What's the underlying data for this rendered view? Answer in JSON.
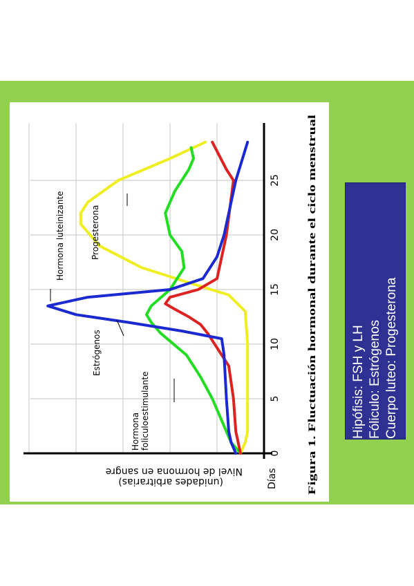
{
  "chart_data": {
    "type": "line",
    "title": "Figura 1. Fluctuación hormonal durante el ciclo menstrual",
    "ylabel": "Nivel de hormona en sangre",
    "ylabel_sub": "(unidades arbitrarias)",
    "xlabel": "Días",
    "xlim": [
      0,
      28
    ],
    "ylim": [
      0,
      100
    ],
    "xticks": [
      0,
      5,
      10,
      15,
      20,
      25
    ],
    "grid": true,
    "orientation": "rotated 90° clockwise",
    "series": [
      {
        "name": "Hormona luteinizante",
        "color": "#1a2ad0",
        "x": [
          0,
          1,
          2,
          5,
          9,
          10.5,
          11.2,
          12,
          12.7,
          13.5,
          14.3,
          15,
          16,
          18,
          20,
          25,
          28.5
        ],
        "y": [
          12,
          14,
          15,
          16,
          17,
          18,
          35,
          58,
          80,
          92,
          75,
          40,
          26,
          20,
          17,
          12,
          7
        ]
      },
      {
        "name": "Hormona foliculoestimulante",
        "color": "#dd2222",
        "x": [
          0,
          1,
          2,
          5,
          8,
          11,
          11.8,
          12.5,
          13.2,
          13.7,
          14.3,
          15,
          16,
          20,
          25,
          26,
          28.5
        ],
        "y": [
          10,
          11,
          12,
          13,
          15,
          24,
          27,
          32,
          38,
          42,
          40,
          28,
          20,
          16,
          13,
          16,
          22
        ]
      },
      {
        "name": "Estrógenos",
        "color": "#22dd22",
        "x": [
          0,
          1,
          3,
          5,
          7,
          9,
          11,
          12,
          12.7,
          13.5,
          15,
          17,
          18.5,
          20,
          22,
          24,
          26,
          27,
          28
        ],
        "y": [
          10,
          14,
          18,
          22,
          27,
          33,
          44,
          48,
          50,
          48,
          40,
          34,
          35,
          40,
          42,
          38,
          32,
          30,
          31
        ]
      },
      {
        "name": "Progesterona",
        "color": "#eeee22",
        "x": [
          0,
          1,
          2,
          5,
          10,
          13,
          14.5,
          15.5,
          17,
          19,
          21,
          22,
          23,
          25,
          27,
          28.5
        ],
        "y": [
          10,
          8,
          7,
          7,
          7,
          8,
          15,
          30,
          52,
          70,
          78,
          78,
          75,
          62,
          40,
          25
        ]
      }
    ]
  },
  "note": {
    "lines": [
      "Hipófisis: FSH y LH",
      "Fóliculo: Estrógenos",
      "Cuerpo luteo: Progesterona"
    ]
  }
}
